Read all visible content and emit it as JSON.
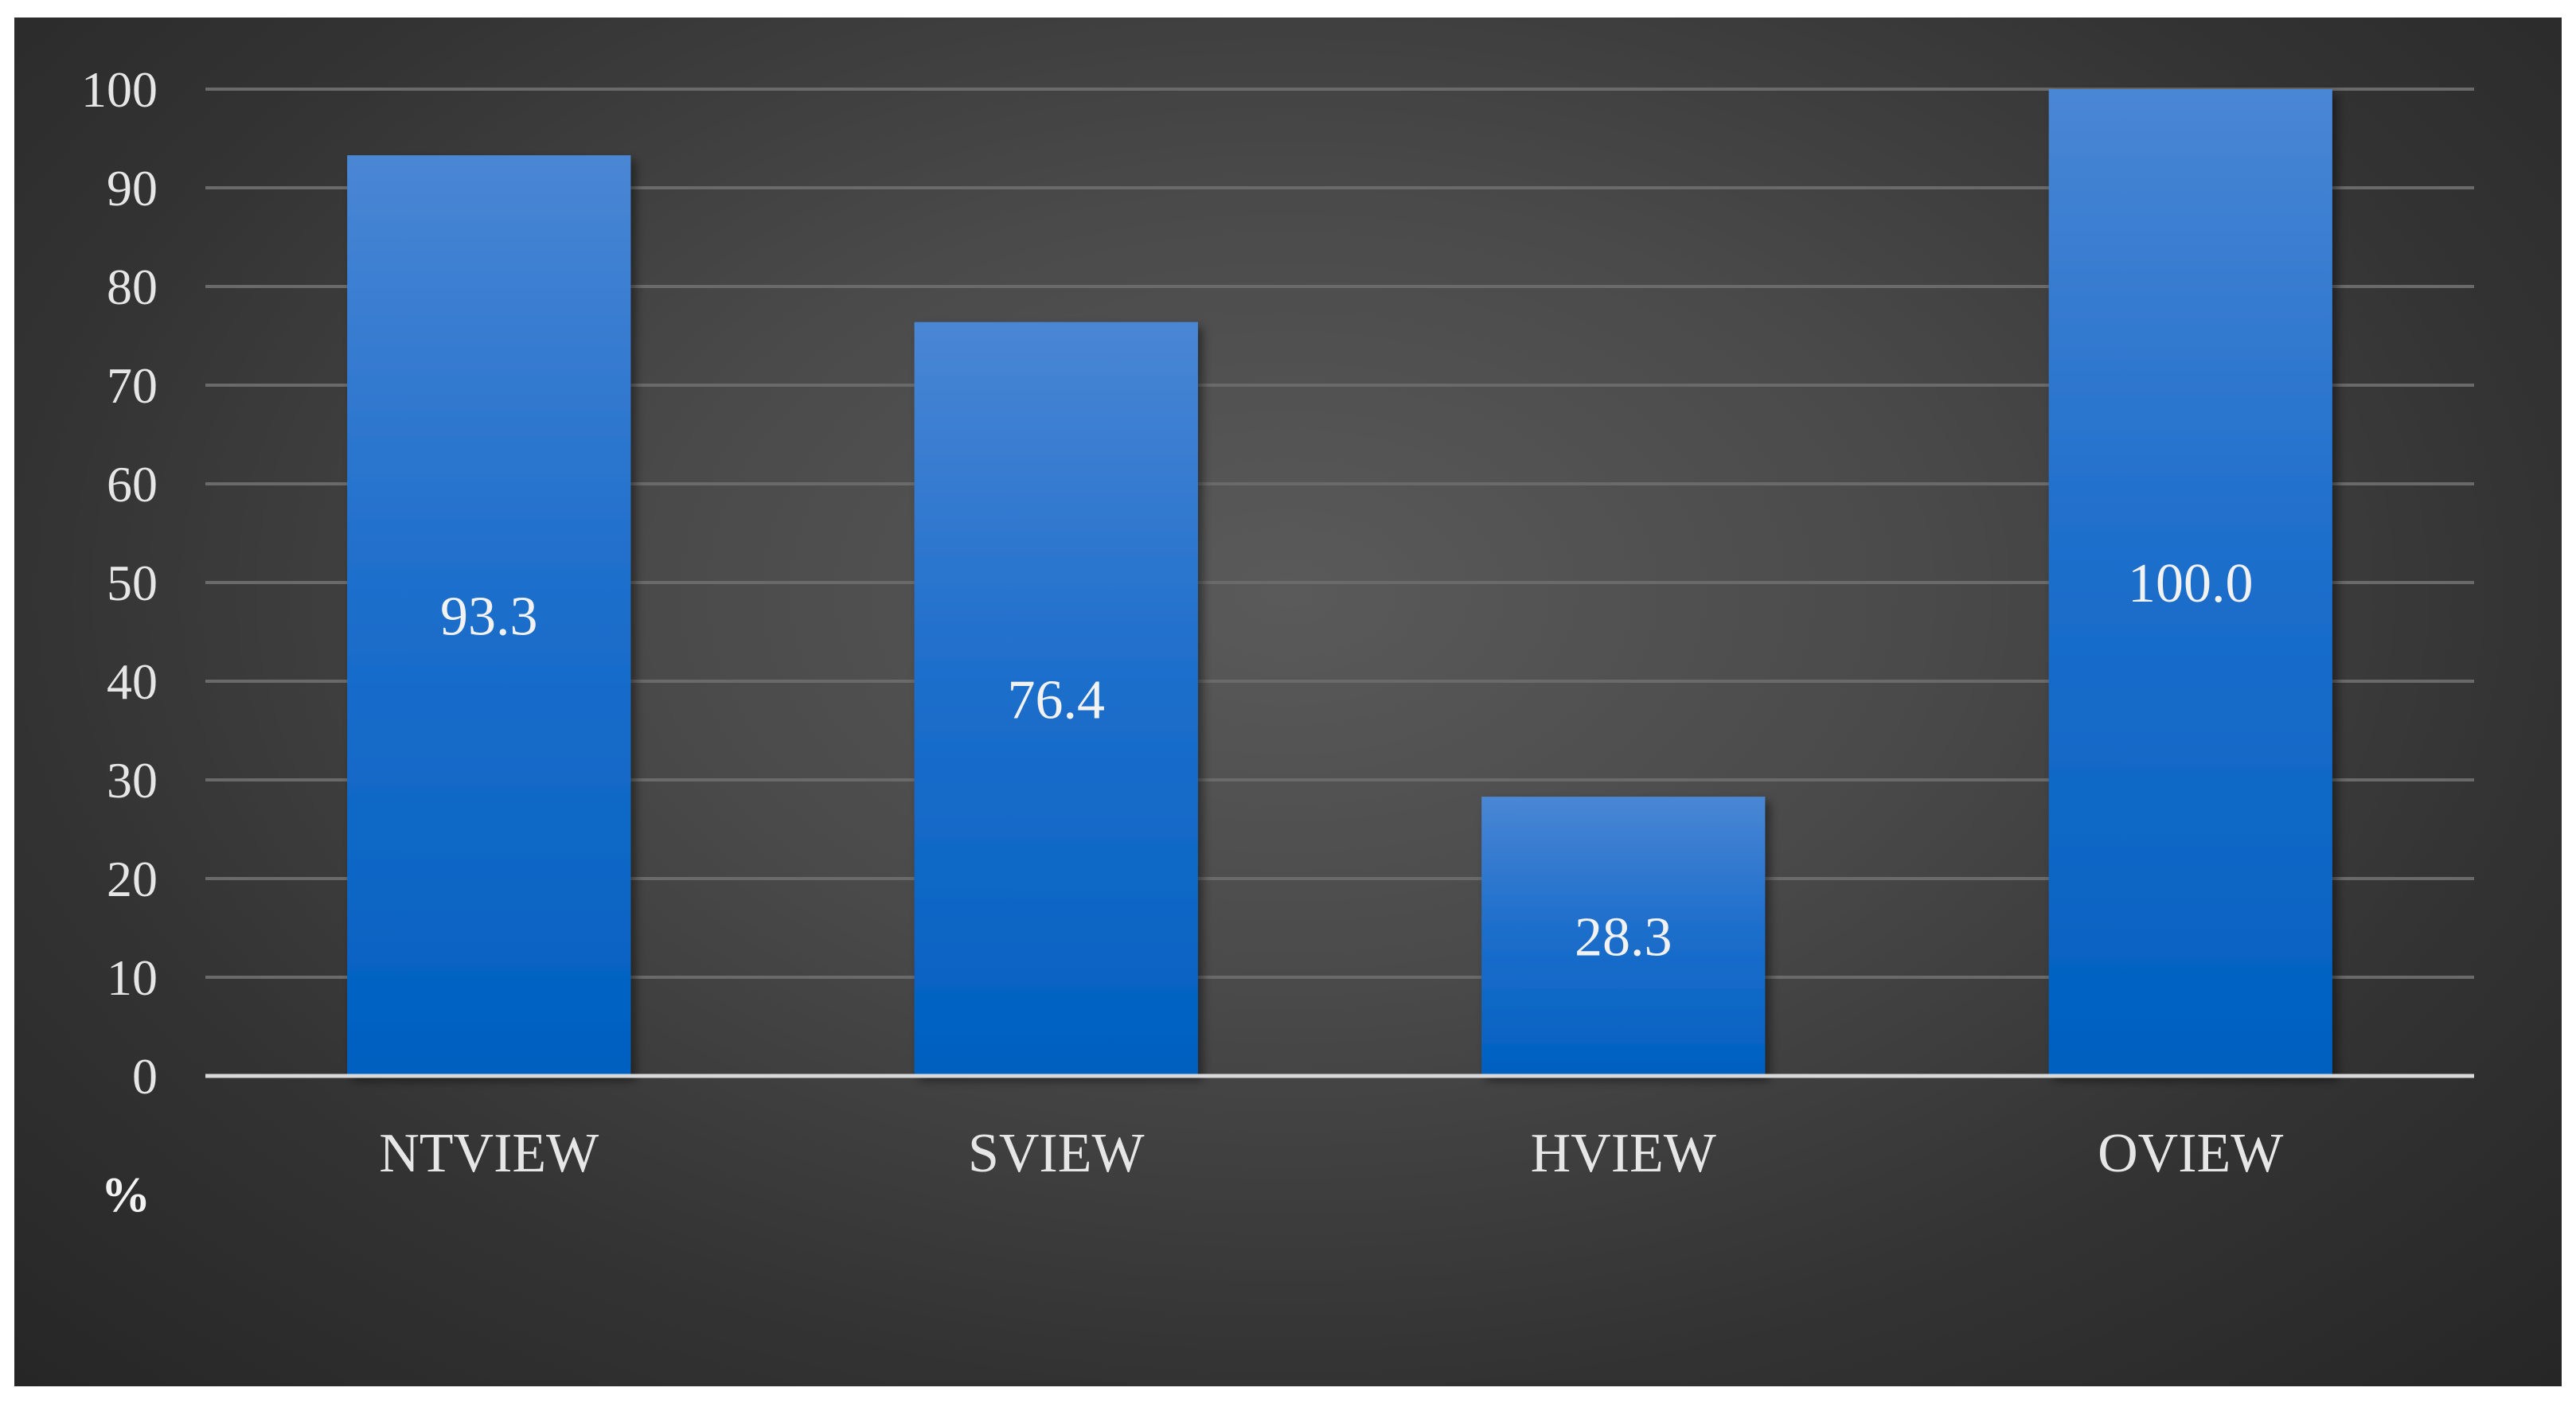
{
  "chart_data": {
    "type": "bar",
    "title": "",
    "xlabel": "",
    "ylabel": "",
    "unit_label": "%",
    "categories": [
      "NTVIEW",
      "SVIEW",
      "HVIEW",
      "OVIEW"
    ],
    "values": [
      93.3,
      76.4,
      28.3,
      100.0
    ],
    "data_labels": [
      "93.3",
      "76.4",
      "28.3",
      "100.0"
    ],
    "ylim": [
      0,
      100
    ],
    "yticks": [
      "0",
      "10",
      "20",
      "30",
      "40",
      "50",
      "60",
      "70",
      "80",
      "90",
      "100"
    ],
    "grid": true,
    "legend": "none",
    "colors": {
      "bar_top": "#4a86d4",
      "bar_bottom": "#0060c0",
      "grid": "#6a6a6a",
      "axis": "#d9d9d9",
      "text": "#e6e6e6"
    }
  }
}
